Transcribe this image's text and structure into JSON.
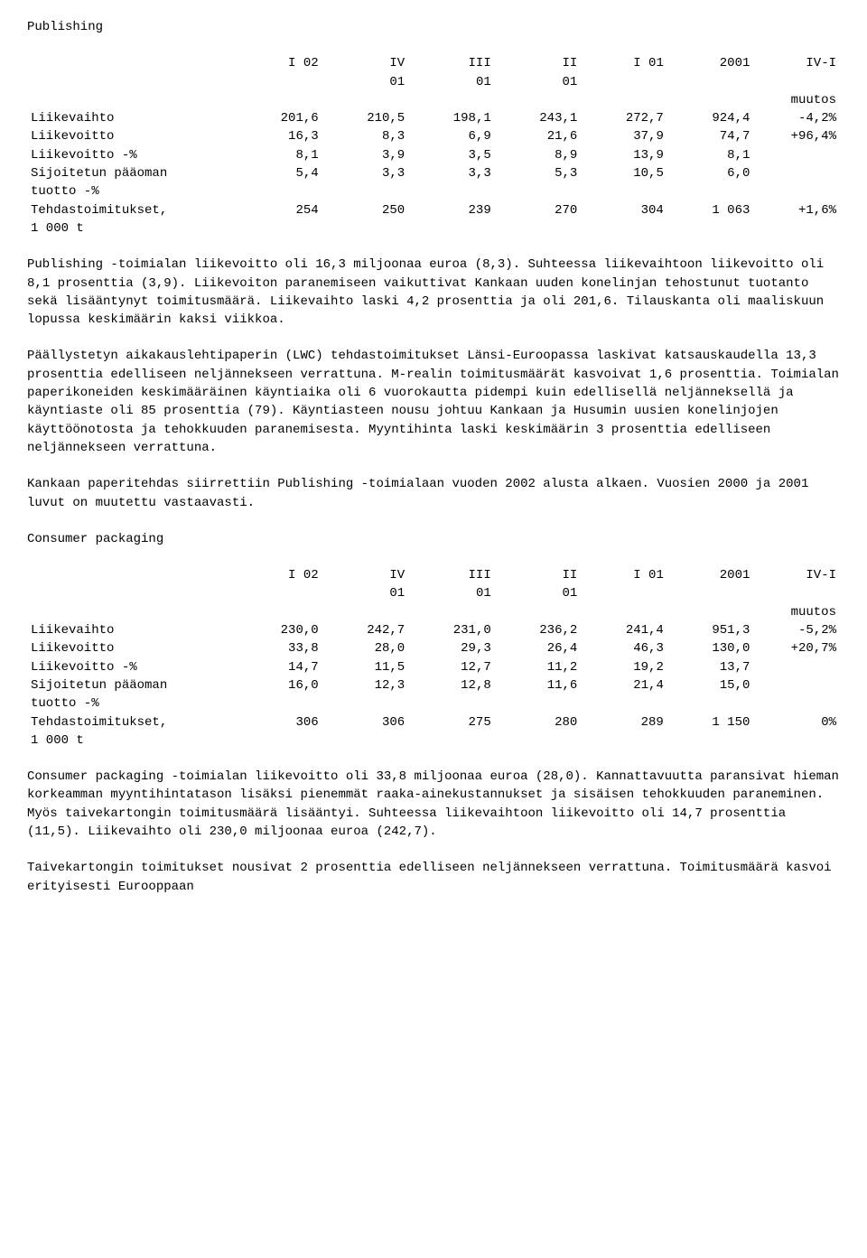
{
  "font": {
    "family": "Courier New",
    "size_pt": 14,
    "color": "#000000",
    "background": "#ffffff"
  },
  "sections": {
    "publishing": {
      "title": "Publishing",
      "table": {
        "headers_row1": [
          "",
          "I  02",
          "IV",
          "III",
          "II",
          "I  01",
          "2001",
          "IV-I"
        ],
        "headers_row2": [
          "",
          "",
          "01",
          "01",
          "01",
          "",
          "",
          ""
        ],
        "headers_row3": [
          "",
          "",
          "",
          "",
          "",
          "",
          "",
          "muutos"
        ],
        "rows": [
          {
            "label": "Liikevaihto",
            "cells": [
              "201,6",
              "210,5",
              "198,1",
              "243,1",
              "272,7",
              "924,4",
              "-4,2%"
            ]
          },
          {
            "label": "Liikevoitto",
            "cells": [
              "16,3",
              "8,3",
              "6,9",
              "21,6",
              "37,9",
              "74,7",
              "+96,4%"
            ]
          },
          {
            "label": "Liikevoitto -%",
            "cells": [
              "8,1",
              "3,9",
              "3,5",
              "8,9",
              "13,9",
              "8,1",
              ""
            ]
          },
          {
            "label": "Sijoitetun pääoman",
            "cells": [
              "5,4",
              "3,3",
              "3,3",
              "5,3",
              "10,5",
              "6,0",
              ""
            ]
          },
          {
            "label": "tuotto -%",
            "cells": [
              "",
              "",
              "",
              "",
              "",
              "",
              ""
            ]
          },
          {
            "label": "Tehdastoimitukset,",
            "cells": [
              "254",
              "250",
              "239",
              "270",
              "304",
              "1 063",
              "+1,6%"
            ]
          },
          {
            "label": "1 000 t",
            "cells": [
              "",
              "",
              "",
              "",
              "",
              "",
              ""
            ]
          }
        ]
      },
      "paragraphs": [
        "Publishing -toimialan liikevoitto oli 16,3 miljoonaa euroa (8,3). Suhteessa liikevaihtoon liikevoitto oli 8,1 prosenttia (3,9). Liikevoiton paranemiseen vaikuttivat Kankaan uuden konelinjan tehostunut tuotanto sekä lisääntynyt toimitusmäärä. Liikevaihto laski 4,2 prosenttia ja oli 201,6. Tilauskanta oli maaliskuun lopussa keskimäärin kaksi viikkoa.",
        "Päällystetyn aikakauslehtipaperin (LWC) tehdastoimitukset Länsi-Euroopassa laskivat katsauskaudella 13,3 prosenttia edelliseen neljännekseen verrattuna. M-realin toimitusmäärät kasvoivat 1,6 prosenttia. Toimialan paperikoneiden keskimääräinen käyntiaika oli 6 vuorokautta pidempi kuin edellisellä neljänneksellä ja käyntiaste oli 85 prosenttia (79). Käyntiasteen nousu johtuu Kankaan ja Husumin uusien konelinjojen käyttöönotosta ja tehokkuuden paranemisesta. Myyntihinta laski keskimäärin 3 prosenttia edelliseen neljännekseen verrattuna.",
        "Kankaan paperitehdas siirrettiin Publishing -toimialaan vuoden 2002 alusta alkaen. Vuosien 2000 ja 2001 luvut on muutettu vastaavasti."
      ]
    },
    "consumer": {
      "title": "Consumer packaging",
      "table": {
        "headers_row1": [
          "",
          "I  02",
          "IV",
          "III",
          "II",
          "I  01",
          "2001",
          "IV-I"
        ],
        "headers_row2": [
          "",
          "",
          "01",
          "01",
          "01",
          "",
          "",
          ""
        ],
        "headers_row3": [
          "",
          "",
          "",
          "",
          "",
          "",
          "",
          "muutos"
        ],
        "rows": [
          {
            "label": "Liikevaihto",
            "cells": [
              "230,0",
              "242,7",
              "231,0",
              "236,2",
              "241,4",
              "951,3",
              "-5,2%"
            ]
          },
          {
            "label": "Liikevoitto",
            "cells": [
              "33,8",
              "28,0",
              "29,3",
              "26,4",
              "46,3",
              "130,0",
              "+20,7%"
            ]
          },
          {
            "label": "Liikevoitto -%",
            "cells": [
              "14,7",
              "11,5",
              "12,7",
              "11,2",
              "19,2",
              "13,7",
              ""
            ]
          },
          {
            "label": "Sijoitetun pääoman",
            "cells": [
              "16,0",
              "12,3",
              "12,8",
              "11,6",
              "21,4",
              "15,0",
              ""
            ]
          },
          {
            "label": "tuotto -%",
            "cells": [
              "",
              "",
              "",
              "",
              "",
              "",
              ""
            ]
          },
          {
            "label": "Tehdastoimitukset,",
            "cells": [
              "306",
              "306",
              "275",
              "280",
              "289",
              "1 150",
              "0%"
            ]
          },
          {
            "label": "1 000 t",
            "cells": [
              "",
              "",
              "",
              "",
              "",
              "",
              ""
            ]
          }
        ]
      },
      "paragraphs": [
        "Consumer packaging -toimialan liikevoitto oli 33,8 miljoonaa euroa (28,0). Kannattavuutta paransivat hieman korkeamman myyntihintatason lisäksi pienemmät raaka-ainekustannukset ja sisäisen tehokkuuden paraneminen. Myös taivekartongin toimitusmäärä lisääntyi. Suhteessa liikevaihtoon liikevoitto oli 14,7 prosenttia (11,5). Liikevaihto oli 230,0 miljoonaa euroa (242,7).",
        "Taivekartongin toimitukset nousivat 2 prosenttia edelliseen neljännekseen verrattuna. Toimitusmäärä kasvoi erityisesti Eurooppaan"
      ]
    }
  }
}
